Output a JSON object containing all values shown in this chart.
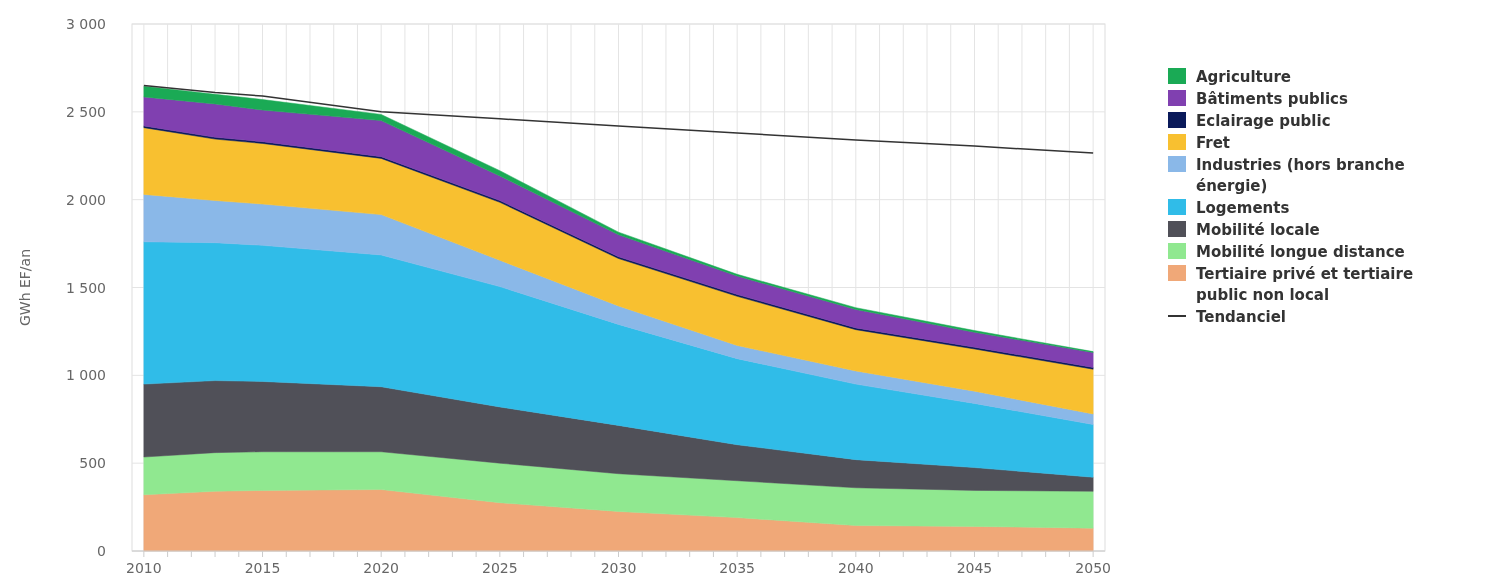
{
  "chart_data": {
    "type": "area",
    "stacked": true,
    "ylabel": "GWh EF/an",
    "x": [
      2010,
      2013,
      2015,
      2020,
      2025,
      2030,
      2035,
      2040,
      2045,
      2050
    ],
    "xlim": [
      2009.5,
      2050.5
    ],
    "ylim": [
      0,
      3000
    ],
    "xticks": [
      2010,
      {
        "value": 2011,
        "label": null
      },
      {
        "value": 2012,
        "label": null
      },
      {
        "value": 2013,
        "label": null
      },
      {
        "value": 2014,
        "label": null
      },
      2015,
      {
        "value": 2016,
        "label": null
      },
      {
        "value": 2017,
        "label": null
      },
      {
        "value": 2018,
        "label": null
      },
      {
        "value": 2019,
        "label": null
      },
      2020,
      {
        "value": 2021,
        "label": null
      },
      {
        "value": 2022,
        "label": null
      },
      {
        "value": 2023,
        "label": null
      },
      {
        "value": 2024,
        "label": null
      },
      2025,
      {
        "value": 2026,
        "label": null
      },
      {
        "value": 2027,
        "label": null
      },
      {
        "value": 2028,
        "label": null
      },
      {
        "value": 2029,
        "label": null
      },
      2030,
      {
        "value": 2031,
        "label": null
      },
      {
        "value": 2032,
        "label": null
      },
      {
        "value": 2033,
        "label": null
      },
      {
        "value": 2034,
        "label": null
      },
      2035,
      {
        "value": 2036,
        "label": null
      },
      {
        "value": 2037,
        "label": null
      },
      {
        "value": 2038,
        "label": null
      },
      {
        "value": 2039,
        "label": null
      },
      2040,
      {
        "value": 2041,
        "label": null
      },
      {
        "value": 2042,
        "label": null
      },
      {
        "value": 2043,
        "label": null
      },
      {
        "value": 2044,
        "label": null
      },
      2045,
      {
        "value": 2046,
        "label": null
      },
      {
        "value": 2047,
        "label": null
      },
      {
        "value": 2048,
        "label": null
      },
      {
        "value": 2049,
        "label": null
      },
      2050
    ],
    "yticks": [
      0,
      500,
      {
        "value": 1000,
        "label": "1 000"
      },
      {
        "value": 1500,
        "label": "1 500"
      },
      {
        "value": 2000,
        "label": "2 000"
      },
      {
        "value": 2500,
        "label": "2 500"
      },
      {
        "value": 3000,
        "label": "3 000"
      }
    ],
    "grid": true,
    "legend": "right",
    "series": [
      {
        "name": "Tertiaire privé et tertiaire public non local",
        "color": "#f0a878",
        "values": [
          320,
          340,
          345,
          350,
          275,
          225,
          190,
          145,
          140,
          130
        ]
      },
      {
        "name": "Mobilité longue distance",
        "color": "#90e890",
        "values": [
          215,
          220,
          220,
          215,
          225,
          215,
          210,
          215,
          205,
          210
        ]
      },
      {
        "name": "Mobilité locale",
        "color": "#505058",
        "values": [
          415,
          410,
          400,
          370,
          320,
          275,
          205,
          160,
          130,
          80
        ]
      },
      {
        "name": "Logements",
        "color": "#30bce8",
        "values": [
          810,
          785,
          775,
          750,
          685,
          575,
          490,
          430,
          365,
          300
        ]
      },
      {
        "name": "Industries (hors branche énergie)",
        "color": "#8ab8e8",
        "values": [
          270,
          240,
          235,
          230,
          150,
          105,
          75,
          75,
          70,
          60
        ]
      },
      {
        "name": "Fret",
        "color": "#f8c030",
        "values": [
          380,
          350,
          345,
          320,
          330,
          270,
          280,
          235,
          240,
          255
        ]
      },
      {
        "name": "Eclairage public",
        "color": "#0a1a5a",
        "values": [
          10,
          10,
          10,
          10,
          10,
          10,
          10,
          10,
          10,
          10
        ]
      },
      {
        "name": "Bâtiments publics",
        "color": "#8040b0",
        "values": [
          165,
          190,
          180,
          205,
          140,
          125,
          105,
          105,
          85,
          85
        ]
      },
      {
        "name": "Agriculture",
        "color": "#1aaa55",
        "values": [
          60,
          55,
          60,
          35,
          30,
          15,
          10,
          10,
          10,
          5
        ]
      },
      {
        "name": "Tendanciel",
        "type": "line",
        "color": "#333333",
        "values": [
          2650,
          2610,
          2590,
          2500,
          2460,
          2420,
          2380,
          2340,
          2305,
          2265
        ]
      }
    ]
  }
}
